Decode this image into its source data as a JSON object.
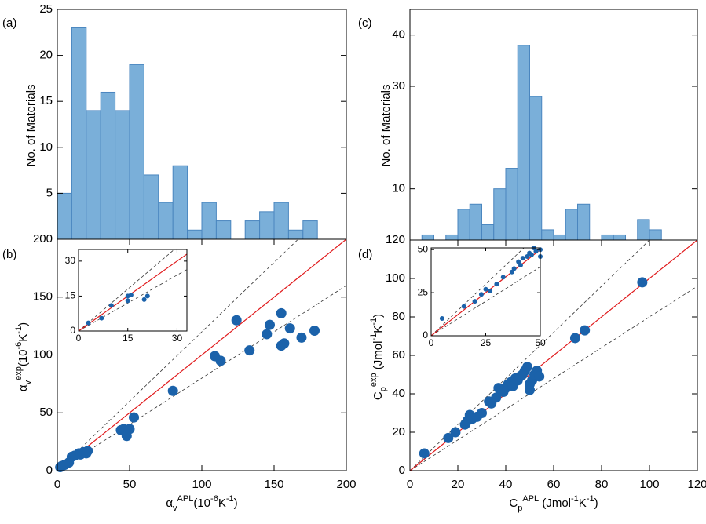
{
  "chart_data": [
    {
      "type": "histogram",
      "panel_label": "(a)",
      "ylabel": [
        {
          "text": "No. of Materials"
        }
      ],
      "bins": [
        0,
        10,
        20,
        30,
        40,
        50,
        60,
        70,
        80,
        90,
        100,
        110,
        120,
        130,
        140,
        150,
        160,
        170,
        180
      ],
      "values": [
        5,
        23,
        14,
        16,
        14,
        19,
        7,
        4,
        8,
        1,
        4,
        2,
        0,
        2,
        3,
        4,
        1,
        2
      ],
      "color": "#7aafd9",
      "edge_color": "#4a86bf",
      "xlim": [
        0,
        200
      ],
      "ylim": [
        0,
        25
      ],
      "yticks": [
        5,
        10,
        15,
        20,
        25
      ]
    },
    {
      "type": "scatter",
      "panel_label": "(b)",
      "ylabel": [
        {
          "text": "α"
        },
        {
          "text": "v",
          "shift": "sub"
        },
        {
          "text": "exp",
          "shift": "super"
        },
        {
          "text": "(10"
        },
        {
          "text": "-6",
          "shift": "super"
        },
        {
          "text": "K"
        },
        {
          "text": "-1",
          "shift": "super"
        },
        {
          "text": ")"
        }
      ],
      "xlabel": [
        {
          "text": "α"
        },
        {
          "text": "v",
          "shift": "sub"
        },
        {
          "text": "APL",
          "shift": "super"
        },
        {
          "text": "(10"
        },
        {
          "text": "-6",
          "shift": "super"
        },
        {
          "text": "K"
        },
        {
          "text": "-1",
          "shift": "super"
        },
        {
          "text": ")"
        }
      ],
      "x": [
        2,
        3,
        5,
        8,
        10,
        12,
        15,
        16,
        18,
        20,
        21,
        44,
        46,
        48,
        50,
        53,
        80,
        109,
        113,
        124,
        133,
        145,
        147,
        155,
        155,
        157,
        161,
        169,
        178
      ],
      "values": [
        3,
        4,
        5,
        7,
        12,
        13,
        15,
        14,
        16,
        15,
        17,
        35,
        36,
        30,
        36,
        46,
        69,
        99,
        95,
        130,
        104,
        118,
        126,
        136,
        108,
        110,
        123,
        115,
        121
      ],
      "color": "#1b62aa",
      "reference_lines": [
        {
          "slope": 1.2,
          "color": "#333333",
          "dashed": true
        },
        {
          "slope": 0.8,
          "color": "#333333",
          "dashed": true
        },
        {
          "slope": 1,
          "color": "#e0191b",
          "dashed": false
        }
      ],
      "xlim": [
        0,
        200
      ],
      "ylim": [
        0,
        200
      ],
      "xticks": [
        0,
        50,
        100,
        150,
        200
      ],
      "yticks": [
        0,
        50,
        100,
        150,
        200
      ],
      "inset": {
        "type": "scatter",
        "x": [
          3,
          7,
          10,
          15,
          15,
          16,
          20,
          21
        ],
        "values": [
          3.5,
          5.5,
          11,
          13,
          15,
          15.5,
          13.5,
          15
        ],
        "color": "#1b62aa",
        "reference_lines": [
          {
            "slope": 1.2,
            "color": "#333333",
            "dashed": true
          },
          {
            "slope": 0.8,
            "color": "#333333",
            "dashed": true
          },
          {
            "slope": 1,
            "color": "#e0191b",
            "dashed": false
          }
        ],
        "xlim": [
          0,
          33
        ],
        "ylim": [
          0,
          35
        ],
        "xticks": [
          0,
          15,
          30
        ],
        "yticks": [
          0,
          15,
          30
        ]
      }
    },
    {
      "type": "histogram",
      "panel_label": "(c)",
      "ylabel": [
        {
          "text": "No. of Materials"
        }
      ],
      "bins": [
        5,
        10,
        15,
        20,
        25,
        30,
        35,
        40,
        45,
        50,
        55,
        60,
        65,
        70,
        75,
        80,
        85,
        90,
        95,
        100,
        105
      ],
      "values": [
        1,
        0,
        1,
        6,
        7,
        3,
        10,
        14,
        38,
        28,
        2,
        1,
        6,
        7,
        0,
        1,
        1,
        0,
        4,
        2
      ],
      "color": "#7aafd9",
      "edge_color": "#4a86bf",
      "xlim": [
        0,
        120
      ],
      "ylim": [
        0,
        45
      ],
      "yticks": [
        10,
        30,
        40
      ]
    },
    {
      "type": "scatter",
      "panel_label": "(d)",
      "ylabel": [
        {
          "text": "C"
        },
        {
          "text": "p",
          "shift": "sub"
        },
        {
          "text": "exp",
          "shift": "super"
        },
        {
          "text": " (Jmol"
        },
        {
          "text": "-1",
          "shift": "super"
        },
        {
          "text": "K"
        },
        {
          "text": "-1",
          "shift": "super"
        },
        {
          "text": ")"
        }
      ],
      "xlabel": [
        {
          "text": "C"
        },
        {
          "text": "p",
          "shift": "sub"
        },
        {
          "text": "APL",
          "shift": "super"
        },
        {
          "text": " (Jmol"
        },
        {
          "text": "-1",
          "shift": "super"
        },
        {
          "text": "K"
        },
        {
          "text": "-1",
          "shift": "super"
        },
        {
          "text": ")"
        }
      ],
      "x": [
        6,
        16,
        19,
        23,
        24,
        25,
        26,
        28,
        30,
        33,
        34,
        36,
        37,
        38,
        39,
        40,
        41,
        42,
        43,
        44,
        45,
        46,
        47,
        48,
        49,
        50,
        50,
        51,
        52,
        53,
        54,
        69,
        73,
        97
      ],
      "values": [
        9,
        17,
        20,
        24,
        26,
        29,
        27,
        28,
        30,
        36,
        35,
        38,
        43,
        42,
        41,
        43,
        45,
        46,
        44,
        48,
        47,
        49,
        50,
        52,
        54,
        45,
        42,
        47,
        50,
        52,
        49,
        69,
        73,
        98
      ],
      "color": "#1b62aa",
      "reference_lines": [
        {
          "slope": 1.2,
          "color": "#333333",
          "dashed": true
        },
        {
          "slope": 0.8,
          "color": "#333333",
          "dashed": true
        },
        {
          "slope": 1,
          "color": "#e0191b",
          "dashed": false
        }
      ],
      "xlim": [
        0,
        120
      ],
      "ylim": [
        0,
        120
      ],
      "xticks": [
        0,
        20,
        40,
        60,
        80,
        100,
        120
      ],
      "yticks": [
        0,
        20,
        40,
        60,
        80,
        100,
        120
      ],
      "inset": {
        "type": "scatter",
        "x": [
          5,
          15,
          20,
          23,
          25,
          27,
          30,
          33,
          37,
          38,
          40,
          41,
          42,
          44,
          45,
          46,
          47,
          48,
          50,
          50
        ],
        "values": [
          10,
          17,
          20,
          24,
          27,
          26,
          30,
          34,
          37,
          39,
          43,
          41,
          45,
          46,
          48,
          47,
          51,
          49,
          50,
          46
        ],
        "color": "#1b62aa",
        "reference_lines": [
          {
            "slope": 1.2,
            "color": "#333333",
            "dashed": true
          },
          {
            "slope": 0.8,
            "color": "#333333",
            "dashed": true
          },
          {
            "slope": 1,
            "color": "#e0191b",
            "dashed": false
          }
        ],
        "xlim": [
          0,
          50
        ],
        "ylim": [
          0,
          51
        ],
        "xticks": [
          0,
          25,
          50
        ],
        "yticks": [
          0,
          25,
          50
        ]
      }
    }
  ]
}
